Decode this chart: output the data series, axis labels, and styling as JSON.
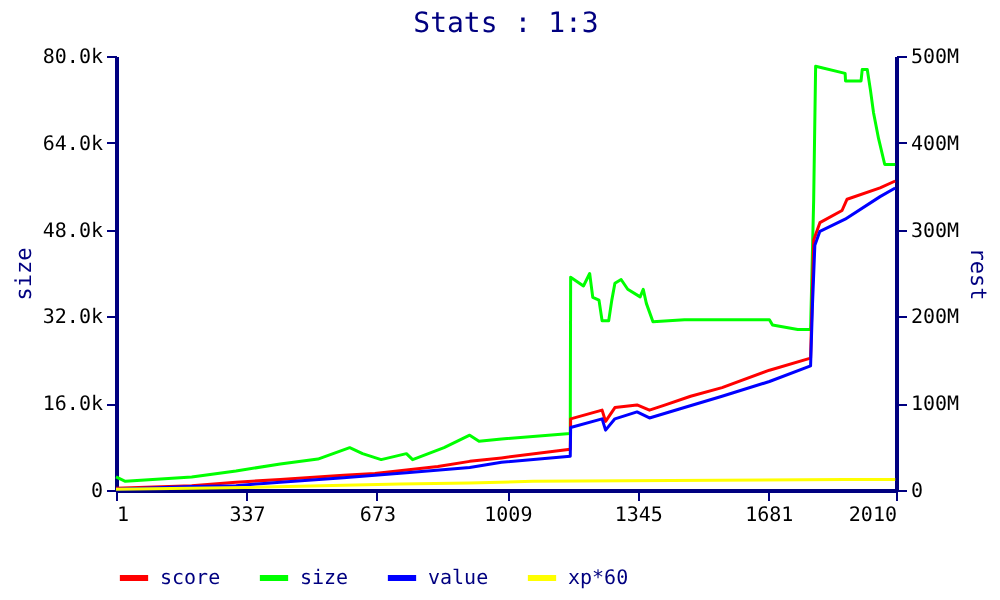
{
  "chart_data": {
    "type": "line",
    "title": "Stats : 1:3",
    "ylabel": "size",
    "y2label": "rest",
    "xlim": [
      1,
      2010
    ],
    "xticks": [
      1,
      337,
      673,
      1009,
      1345,
      1681,
      2010
    ],
    "ylim": [
      0,
      80000
    ],
    "yticks": [
      0,
      {
        "value": 16000,
        "label": "16.0k"
      },
      {
        "value": 32000,
        "label": "32.0k"
      },
      {
        "value": 48000,
        "label": "48.0k"
      },
      {
        "value": 64000,
        "label": "64.0k"
      },
      {
        "value": 80000,
        "label": "80.0k"
      }
    ],
    "y2lim": [
      0,
      500000000
    ],
    "y2ticks": [
      0,
      {
        "value": 100000000,
        "label": "100M"
      },
      {
        "value": 200000000,
        "label": "200M"
      },
      {
        "value": 300000000,
        "label": "300M"
      },
      {
        "value": 400000000,
        "label": "400M"
      },
      {
        "value": 500000000,
        "label": "500M"
      }
    ],
    "grid": false,
    "legend": "bottom left",
    "marker": "none",
    "line_style": "solid",
    "series": [
      {
        "name": "score",
        "color": "#ff0000",
        "axis": "y2",
        "x": [
          1,
          196,
          310,
          424,
          587,
          668,
          749,
          830,
          912,
          994,
          1171,
          1172,
          1253,
          1262,
          1286,
          1343,
          1375,
          1416,
          1481,
          1562,
          1684,
          1790,
          1798,
          1814,
          1871,
          1884,
          1969,
          2008
        ],
        "values": [
          2000000,
          5000000,
          9000000,
          12000000,
          17000000,
          19000000,
          23000000,
          27000000,
          33000000,
          37000000,
          47000000,
          82000000,
          92000000,
          79000000,
          95000000,
          98000000,
          92000000,
          98000000,
          108000000,
          118000000,
          138000000,
          152000000,
          288000000,
          308000000,
          322000000,
          335000000,
          348000000,
          356000000
        ]
      },
      {
        "name": "size",
        "color": "#00ff00",
        "x": [
          1,
          25,
          196,
          310,
          424,
          521,
          603,
          636,
          684,
          749,
          765,
          846,
          912,
          936,
          994,
          1171,
          1172,
          1205,
          1221,
          1229,
          1245,
          1253,
          1270,
          1278,
          1286,
          1302,
          1319,
          1351,
          1359,
          1367,
          1384,
          1465,
          1684,
          1692,
          1757,
          1790,
          1798,
          1803,
          1879,
          1880,
          1920,
          1923,
          1936,
          1944,
          1952,
          1965,
          1981,
          2008
        ],
        "values": [
          2400,
          1600,
          2400,
          3500,
          4800,
          5700,
          7800,
          6700,
          5600,
          6700,
          5600,
          7800,
          10100,
          9000,
          9400,
          10400,
          39200,
          37600,
          39900,
          35500,
          35000,
          31200,
          31200,
          35000,
          38100,
          38800,
          37000,
          35600,
          37000,
          34400,
          31000,
          31400,
          31400,
          30400,
          29600,
          29600,
          53600,
          78100,
          76800,
          75400,
          75400,
          77500,
          77500,
          73800,
          69600,
          64800,
          60000,
          60000
        ]
      },
      {
        "name": "value",
        "color": "#0000ff",
        "axis": "y2",
        "x": [
          1,
          196,
          310,
          424,
          587,
          749,
          912,
          994,
          1171,
          1172,
          1253,
          1262,
          1286,
          1343,
          1375,
          1465,
          1562,
          1684,
          1790,
          1795,
          1801,
          1814,
          1879,
          1969,
          2008
        ],
        "values": [
          1000000,
          4000000,
          5000000,
          9000000,
          14000000,
          20000000,
          26000000,
          32000000,
          39000000,
          72000000,
          82000000,
          69000000,
          82000000,
          90000000,
          83000000,
          95000000,
          108000000,
          125000000,
          143000000,
          215000000,
          282000000,
          298000000,
          312000000,
          338000000,
          348000000
        ]
      },
      {
        "name": "xp*60",
        "color": "#ffff00",
        "axis": "y2",
        "x": [
          1,
          334,
          733,
          912,
          1075,
          1879,
          2008
        ],
        "values": [
          1000000,
          3000000,
          7000000,
          8000000,
          10000000,
          12000000,
          12000000
        ]
      }
    ]
  }
}
